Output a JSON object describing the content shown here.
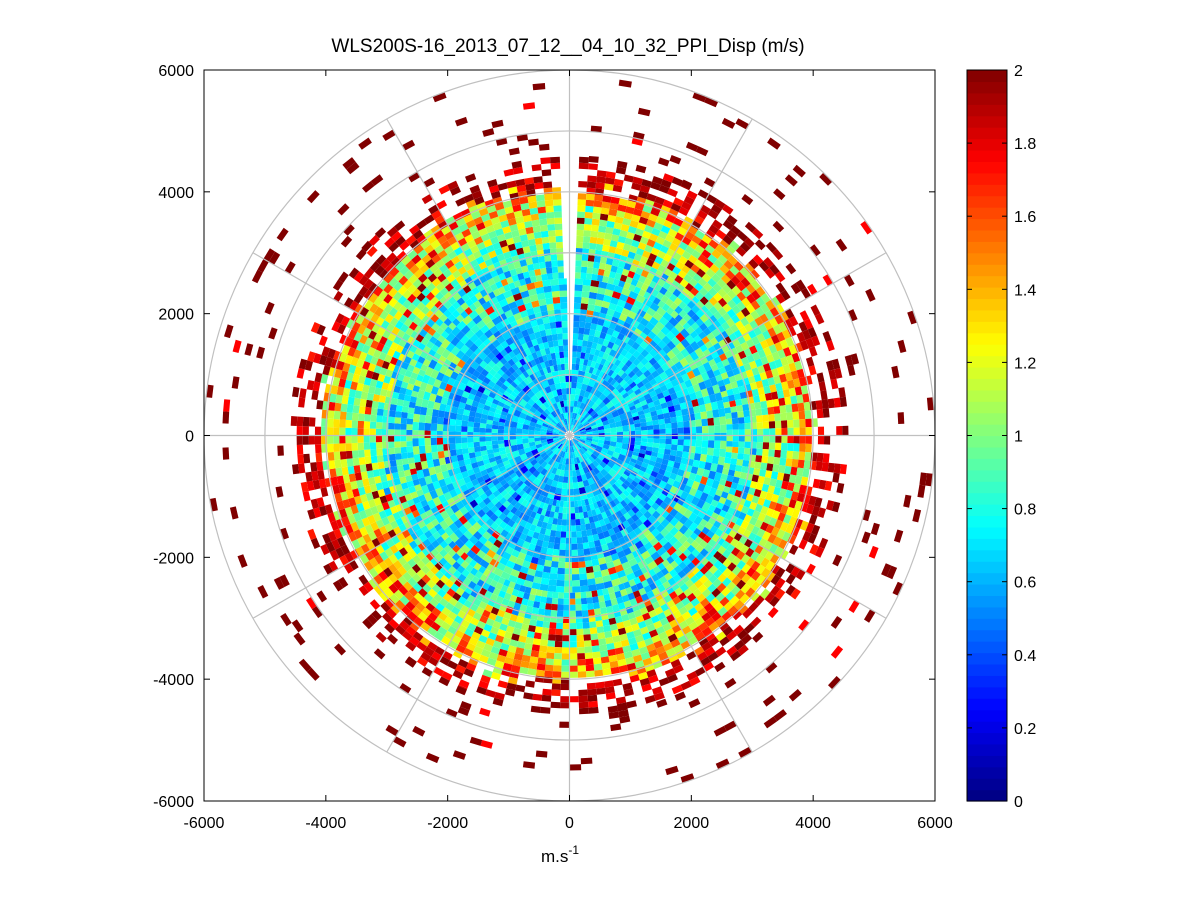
{
  "chart_data": {
    "type": "heatmap",
    "subtype": "polar-ppi",
    "title": "WLS200S-16_2013_07_12__04_10_32_PPI_Disp (m/s)",
    "xlabel_base": "m.s",
    "xlabel_exp": "-1",
    "xlabel": "m.s-1",
    "ylabel": "",
    "xlim": [
      -6000,
      6000
    ],
    "ylim": [
      -6000,
      6000
    ],
    "x_ticks": [
      -6000,
      -4000,
      -2000,
      0,
      2000,
      4000,
      6000
    ],
    "y_ticks": [
      6000,
      4000,
      2000,
      0,
      -2000,
      -4000,
      -6000
    ],
    "x_tick_labels": [
      "-6000",
      "-4000",
      "-2000",
      "0",
      "2000",
      "4000",
      "6000"
    ],
    "y_tick_labels": [
      "6000",
      "4000",
      "2000",
      "0",
      "-2000",
      "-4000",
      "-6000"
    ],
    "polar_grid": {
      "ring_radii": [
        1000,
        2000,
        3000,
        4000,
        5000,
        6000
      ],
      "spoke_angles_deg": [
        0,
        30,
        60,
        90,
        120,
        150,
        180,
        210,
        240,
        270,
        300,
        330
      ]
    },
    "data_description": {
      "max_range_m": 6000,
      "dense_data_range_m": [
        0,
        4500
      ],
      "gap_azimuth_deg": [
        -2,
        2
      ],
      "inner_values_m_s": [
        0.6,
        0.9
      ],
      "mid_ring_values_m_s": [
        0.9,
        1.3
      ],
      "outer_ring_values_m_s": [
        1.6,
        2.0
      ],
      "sparse_outer_range_m": [
        4500,
        6000
      ],
      "sparse_outer_value_m_s": 2.0
    },
    "colorbar": {
      "colormap": "jet",
      "range": [
        0,
        2
      ],
      "ticks": [
        0,
        0.2,
        0.4,
        0.6,
        0.8,
        1,
        1.2,
        1.4,
        1.6,
        1.8,
        2
      ],
      "tick_labels": [
        "0",
        "0.2",
        "0.4",
        "0.6",
        "0.8",
        "1",
        "1.2",
        "1.4",
        "1.6",
        "1.8",
        "2"
      ]
    }
  }
}
